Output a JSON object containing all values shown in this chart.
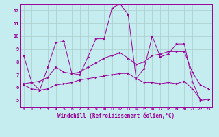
{
  "xlabel": "Windchill (Refroidissement éolien,°C)",
  "xlim": [
    -0.5,
    23.5
  ],
  "ylim": [
    4.5,
    12.5
  ],
  "yticks": [
    5,
    6,
    7,
    8,
    9,
    10,
    11,
    12
  ],
  "xticks": [
    0,
    1,
    2,
    3,
    4,
    5,
    6,
    7,
    8,
    9,
    10,
    11,
    12,
    13,
    14,
    15,
    16,
    17,
    18,
    19,
    20,
    21,
    22,
    23
  ],
  "background_color": "#c5ecee",
  "line_color": "#990099",
  "grid_color": "#aacccc",
  "line1_y": [
    8.5,
    6.4,
    5.8,
    7.6,
    9.5,
    9.6,
    7.1,
    7.0,
    8.4,
    9.8,
    9.8,
    12.2,
    12.5,
    11.7,
    6.7,
    7.5,
    10.0,
    8.4,
    8.6,
    9.4,
    9.4,
    6.5,
    5.0,
    5.1
  ],
  "line2_y": [
    6.3,
    6.4,
    6.5,
    6.8,
    7.6,
    7.2,
    7.1,
    7.2,
    7.6,
    7.9,
    8.3,
    8.5,
    8.7,
    8.3,
    7.8,
    8.0,
    8.5,
    8.6,
    8.8,
    8.8,
    8.8,
    7.2,
    6.2,
    5.9
  ],
  "line3_y": [
    6.2,
    5.9,
    5.8,
    5.9,
    6.2,
    6.3,
    6.4,
    6.6,
    6.7,
    6.8,
    6.9,
    7.0,
    7.1,
    7.1,
    6.7,
    6.4,
    6.4,
    6.3,
    6.4,
    6.3,
    6.5,
    5.9,
    5.1,
    5.1
  ]
}
